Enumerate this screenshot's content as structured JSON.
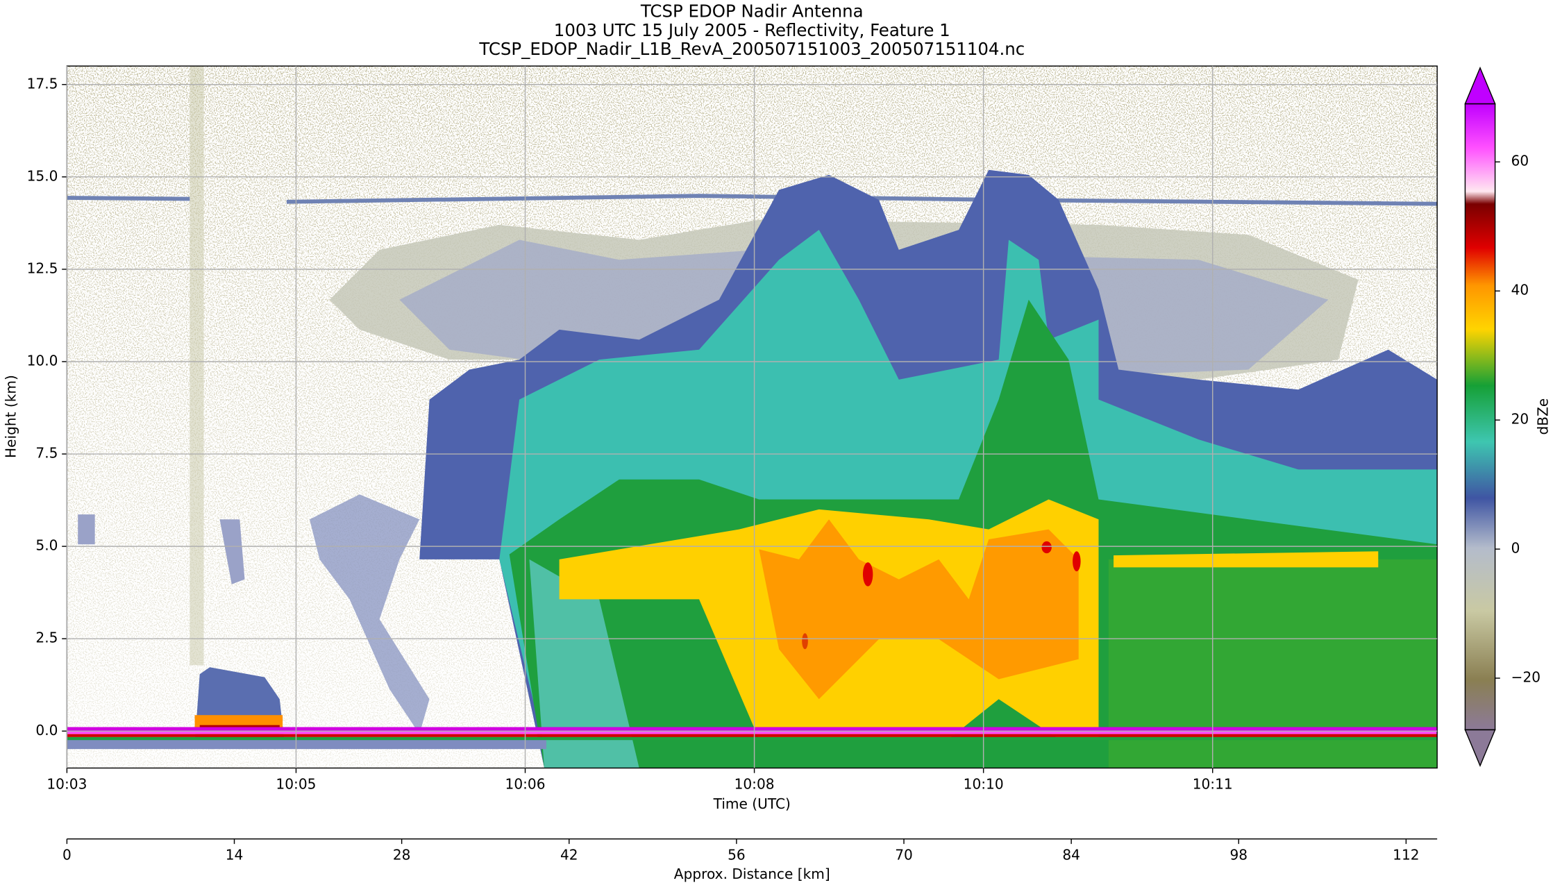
{
  "chart_data": {
    "type": "heatmap",
    "title": "TCSP EDOP Nadir Antenna",
    "subtitle": "1003 UTC 15 July 2005 - Reflectivity, Feature 1",
    "filename": "TCSP_EDOP_Nadir_L1B_RevA_200507151003_200507151104.nc",
    "xlabel": "Time (UTC)",
    "ylabel": "Height (km)",
    "x2label": "Approx. Distance [km]",
    "colorbar_label": "dBZe",
    "xlim": [
      0,
      5.98
    ],
    "xticks": [
      {
        "value": 0,
        "label": "10:03"
      },
      {
        "value": 1,
        "label": "10:05"
      },
      {
        "value": 2,
        "label": "10:06"
      },
      {
        "value": 3,
        "label": "10:08"
      },
      {
        "value": 4,
        "label": "10:10"
      },
      {
        "value": 5,
        "label": "10:11"
      }
    ],
    "ylim": [
      -1,
      18
    ],
    "yticks": [
      {
        "value": 0,
        "label": "0.0"
      },
      2.5,
      {
        "value": 5,
        "label": "5.0"
      },
      7.5,
      {
        "value": 10,
        "label": "10.0"
      },
      12.5,
      {
        "value": 15,
        "label": "15.0"
      },
      17.5
    ],
    "x2lim": [
      0,
      114.6
    ],
    "x2ticks": [
      0,
      14,
      28,
      42,
      56,
      70,
      84,
      98,
      112
    ],
    "clim": [
      -28,
      69
    ],
    "cticks": [
      {
        "value": -20,
        "label": "−20"
      },
      0,
      20,
      40,
      60
    ],
    "grid": true
  }
}
